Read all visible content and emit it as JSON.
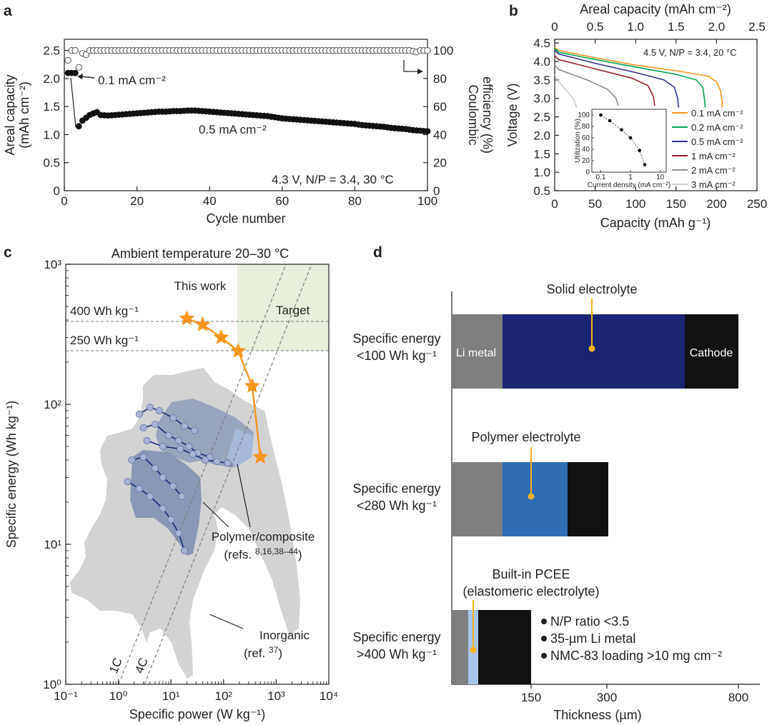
{
  "panels": {
    "a": {
      "label": "a",
      "chart_data": {
        "type": "scatter",
        "xlabel": "Cycle number",
        "ylabel_left": "Areal capacity",
        "ylabel_left_units": "(mAh cm⁻²)",
        "ylabel_right_1": "Coulombic",
        "ylabel_right_2": "efficiency (%)",
        "xlim": [
          0,
          100
        ],
        "ylim_left": [
          0,
          2.7
        ],
        "ylim_right": [
          0,
          108
        ],
        "x_ticks": [
          "0",
          "20",
          "40",
          "60",
          "80",
          "100"
        ],
        "y_ticks_left": [
          "0",
          "0.5",
          "1.0",
          "1.5",
          "2.0",
          "2.5"
        ],
        "y_ticks_right": [
          "0",
          "20",
          "40",
          "60",
          "80",
          "100"
        ],
        "series": [
          {
            "name": "Areal capacity",
            "marker": "filled",
            "x": [
              1,
              2,
              3,
              4,
              5,
              6,
              7,
              8,
              9,
              10,
              12,
              14,
              16,
              18,
              20,
              22,
              24,
              26,
              28,
              30,
              32,
              34,
              36,
              38,
              40,
              42,
              44,
              46,
              48,
              50,
              52,
              54,
              56,
              58,
              60,
              62,
              64,
              66,
              68,
              70,
              72,
              74,
              76,
              78,
              80,
              82,
              84,
              86,
              88,
              90,
              92,
              94,
              96,
              98,
              100
            ],
            "y": [
              2.1,
              2.1,
              2.1,
              1.15,
              1.25,
              1.3,
              1.35,
              1.38,
              1.4,
              1.35,
              1.34,
              1.35,
              1.36,
              1.37,
              1.38,
              1.39,
              1.4,
              1.41,
              1.41,
              1.42,
              1.42,
              1.43,
              1.43,
              1.42,
              1.41,
              1.4,
              1.39,
              1.38,
              1.37,
              1.36,
              1.35,
              1.34,
              1.33,
              1.31,
              1.29,
              1.28,
              1.27,
              1.26,
              1.25,
              1.24,
              1.23,
              1.22,
              1.21,
              1.2,
              1.19,
              1.17,
              1.16,
              1.15,
              1.14,
              1.12,
              1.11,
              1.1,
              1.08,
              1.07,
              1.06
            ]
          },
          {
            "name": "Coulombic efficiency",
            "marker": "open",
            "axis": "right",
            "x": [
              1,
              2,
              3,
              4,
              5,
              6,
              7,
              8,
              9,
              10,
              15,
              20,
              25,
              30,
              35,
              40,
              45,
              50,
              55,
              60,
              65,
              70,
              75,
              80,
              85,
              90,
              95,
              97,
              98,
              99,
              100
            ],
            "y": [
              93,
              100,
              100,
              88,
              98,
              97,
              100,
              100,
              100,
              100,
              100,
              100,
              100,
              100,
              100,
              100,
              100,
              100,
              100,
              100,
              100,
              100,
              100,
              100,
              100,
              100,
              100,
              99,
              100,
              100,
              100
            ]
          }
        ],
        "annotations": [
          "0.1 mA cm⁻²",
          "0.5 mA cm⁻²",
          "4.3 V, N/P = 3.4, 30 °C"
        ]
      }
    },
    "b": {
      "label": "b",
      "chart_data": {
        "type": "line",
        "xlabel": "Capacity (mAh g⁻¹)",
        "xlabel_top": "Areal capacity (mAh cm⁻²)",
        "ylabel": "Voltage (V)",
        "xlim": [
          0,
          250
        ],
        "xlim_top": [
          0,
          2.5
        ],
        "ylim": [
          0.5,
          4.6
        ],
        "x_ticks": [
          "0",
          "50",
          "100",
          "150",
          "200",
          "250"
        ],
        "x_ticks_top": [
          "0",
          "0.5",
          "1.0",
          "1.5",
          "2.0",
          "2.5"
        ],
        "y_ticks": [
          "0.5",
          "1.0",
          "1.5",
          "2.0",
          "2.5",
          "3.0",
          "3.5",
          "4.0",
          "4.5"
        ],
        "condition": "4.5 V, N/P = 3.4, 20 °C",
        "series": [
          {
            "name": "0.1 mA cm⁻²",
            "color": "#f7941d",
            "x": [
              0,
              5,
              50,
              100,
              150,
              190,
              200,
              205,
              207,
              207
            ],
            "y": [
              4.38,
              4.3,
              4.1,
              3.9,
              3.75,
              3.6,
              3.45,
              3.2,
              2.9,
              2.75
            ]
          },
          {
            "name": "0.2 mA cm⁻²",
            "color": "#00a651",
            "x": [
              0,
              5,
              50,
              100,
              150,
              175,
              183,
              185,
              186
            ],
            "y": [
              4.35,
              4.25,
              4.05,
              3.85,
              3.65,
              3.5,
              3.3,
              3.0,
              2.75
            ]
          },
          {
            "name": "0.5 mA cm⁻²",
            "color": "#2e3192",
            "x": [
              0,
              5,
              50,
              100,
              135,
              148,
              152,
              153
            ],
            "y": [
              4.3,
              4.2,
              3.95,
              3.7,
              3.5,
              3.3,
              3.0,
              2.75
            ]
          },
          {
            "name": "1 mA cm⁻²",
            "color": "#9e1f2a",
            "x": [
              0,
              5,
              50,
              95,
              115,
              122,
              124
            ],
            "y": [
              4.15,
              4.05,
              3.8,
              3.55,
              3.35,
              3.05,
              2.75
            ]
          },
          {
            "name": "2 mA cm⁻²",
            "color": "#8c8c8c",
            "x": [
              0,
              5,
              40,
              65,
              76,
              79
            ],
            "y": [
              3.9,
              3.78,
              3.5,
              3.25,
              3.0,
              2.75
            ]
          },
          {
            "name": "3 mA cm⁻²",
            "color": "#cccccc",
            "x": [
              0,
              3,
              15,
              24,
              27
            ],
            "y": [
              3.65,
              3.5,
              3.2,
              2.95,
              2.75
            ]
          }
        ],
        "inset": {
          "xlabel": "Current density (mA cm⁻²)",
          "ylabel": "Utilization (%)",
          "x_ticks": [
            "0.1",
            "1",
            "10"
          ],
          "y_ticks": [
            "0",
            "20",
            "40",
            "60",
            "80",
            "100"
          ],
          "x": [
            0.1,
            0.2,
            0.5,
            1,
            2,
            3
          ],
          "y": [
            100,
            90,
            74,
            60,
            38,
            13
          ]
        }
      }
    },
    "c": {
      "label": "c",
      "chart_data": {
        "type": "scatter",
        "title": "Ambient temperature 20–30 °C",
        "xlabel": "Specific power (W kg⁻¹)",
        "ylabel": "Specific energy (Wh kg⁻¹)",
        "xscale": "log",
        "yscale": "log",
        "xlim": [
          0.1,
          10000
        ],
        "ylim": [
          1,
          1000
        ],
        "x_ticks": [
          "10⁻¹",
          "10⁰",
          "10¹",
          "10²",
          "10³",
          "10⁴"
        ],
        "y_ticks": [
          "10⁰",
          "10¹",
          "10²",
          "10³"
        ],
        "this_work": {
          "x": [
            20,
            40,
            90,
            190,
            350,
            500
          ],
          "y": [
            410,
            370,
            300,
            240,
            135,
            42
          ]
        },
        "reference_lines": [
          "400 Wh kg⁻¹",
          "250 Wh kg⁻¹",
          "1C",
          "4C"
        ],
        "annotations": {
          "this_work": "This work",
          "target": "Target",
          "polymer": "Polymer/composite",
          "polymer_refs_prefix": "(refs.",
          "polymer_refs_sup": "8,16,38–44",
          "polymer_refs_suffix": ")",
          "inorganic": "Inorganic",
          "inorganic_ref_prefix": "(ref.",
          "inorganic_ref_sup": "37",
          "inorganic_ref_suffix": ")"
        },
        "polymer_refs_groups": [
          {
            "x": [
              2.5,
              4,
              6,
              11,
              18,
              28
            ],
            "y": [
              85,
              95,
              90,
              80,
              70,
              65
            ]
          },
          {
            "x": [
              3,
              5,
              9,
              14,
              22,
              32,
              55
            ],
            "y": [
              68,
              72,
              60,
              55,
              50,
              45,
              42
            ]
          },
          {
            "x": [
              3.5,
              7,
              15,
              26,
              45,
              75,
              120
            ],
            "y": [
              55,
              50,
              48,
              44,
              40,
              39,
              38
            ]
          },
          {
            "x": [
              1.8,
              3,
              5,
              7,
              11,
              16
            ],
            "y": [
              40,
              42,
              35,
              30,
              26,
              22
            ]
          },
          {
            "x": [
              1.5,
              2.5,
              4,
              7,
              10,
              14,
              18
            ],
            "y": [
              28,
              25,
              22,
              18,
              15,
              12,
              9
            ]
          }
        ]
      }
    },
    "d": {
      "label": "d",
      "chart_data": {
        "type": "bar",
        "orientation": "horizontal-stacked",
        "xlabel": "Thickness (µm)",
        "x_ticks": [
          "150",
          "300",
          "800"
        ],
        "categories": [
          "Specific energy <100 Wh kg⁻¹",
          "Specific energy <280 Wh kg⁻¹",
          "Specific energy >400 Wh kg⁻¹"
        ],
        "category_lines": [
          [
            "Specific energy",
            "<100 Wh kg⁻¹"
          ],
          [
            "Specific energy",
            "<280 Wh kg⁻¹"
          ],
          [
            "Specific energy",
            ">400 Wh kg⁻¹"
          ]
        ],
        "segment_labels": {
          "li_metal": "Li metal",
          "cathode": "Cathode"
        },
        "electrolyte_labels": [
          "Solid electrolyte",
          "Polymer electrolyte",
          "Built-in PCEE",
          "(elastomeric electrolyte)"
        ],
        "bullets": [
          "N/P ratio <3.5",
          "35-µm Li metal",
          "NMC-83 loading >10 mg cm⁻²"
        ],
        "colors": {
          "li_metal": "#7f7f7f",
          "solid": "#1b2470",
          "polymer": "#2e6db4",
          "pcee": "#a7c6e8",
          "cathode": "#111111",
          "marker": "#f5b21b"
        }
      }
    }
  }
}
